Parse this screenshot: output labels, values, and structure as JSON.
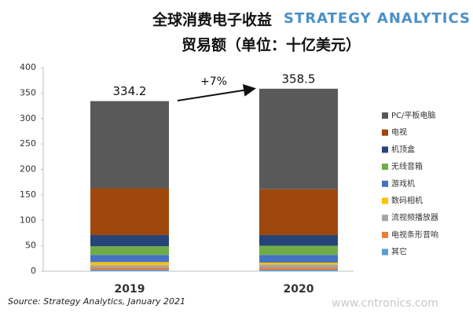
{
  "chart_data": {
    "type": "stacked_bar",
    "title": "全球消费电子收益",
    "subtitle": "贸易额（单位：十亿美元）",
    "logo": "STRATEGY ANALYTICS",
    "source": "Source: Strategy Analytics, January 2021",
    "watermark": "www.cntronics.com",
    "annotation": "+7%",
    "categories": [
      "2019",
      "2020"
    ],
    "totals": [
      334.2,
      358.5
    ],
    "series": [
      {
        "name": "PC/平板电脑",
        "color": "#595959",
        "values": [
          171.2,
          197.5
        ]
      },
      {
        "name": "电视",
        "color": "#9e480e",
        "values": [
          92,
          90
        ]
      },
      {
        "name": "机顶盒",
        "color": "#264478",
        "values": [
          22,
          21
        ]
      },
      {
        "name": "无线音箱",
        "color": "#70ad47",
        "values": [
          17,
          18
        ]
      },
      {
        "name": "游戏机",
        "color": "#4472c4",
        "values": [
          14,
          15
        ]
      },
      {
        "name": "数码相机",
        "color": "#ffc000",
        "values": [
          6,
          4
        ]
      },
      {
        "name": "流视频播放器",
        "color": "#a5a5a5",
        "values": [
          5,
          6
        ]
      },
      {
        "name": "电视条形音响",
        "color": "#ed7d31",
        "values": [
          4,
          4
        ]
      },
      {
        "name": "其它",
        "color": "#5b9bd5",
        "values": [
          3,
          3
        ]
      }
    ],
    "ylim": [
      0,
      400
    ],
    "yticks": [
      0,
      50,
      100,
      150,
      200,
      250,
      300,
      350,
      400
    ],
    "grid": false,
    "legend": "right"
  }
}
